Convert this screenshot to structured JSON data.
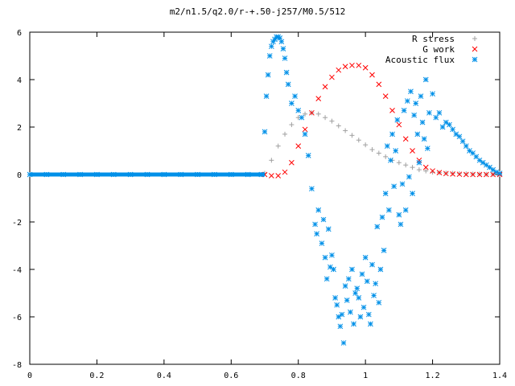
{
  "chart_data": {
    "type": "scatter",
    "title": "m2/n1.5/q2.0/r-+.50-j257/M0.5/512",
    "xlabel": "",
    "ylabel": "",
    "xlim": [
      0,
      1.4
    ],
    "ylim": [
      -8,
      6
    ],
    "xticks": [
      "0",
      "0.2",
      "0.4",
      "0.6",
      "0.8",
      "1",
      "1.2",
      "1.4"
    ],
    "yticks": [
      "6",
      "4",
      "2",
      "0",
      "-2",
      "-4",
      "-6",
      "-8"
    ],
    "grid": false,
    "legend_position": "top-right",
    "series": [
      {
        "name": "R stress",
        "marker": "plus",
        "color": "#a0a0a0",
        "x": [
          0.7,
          0.72,
          0.74,
          0.76,
          0.78,
          0.8,
          0.82,
          0.84,
          0.86,
          0.88,
          0.9,
          0.92,
          0.94,
          0.96,
          0.98,
          1.0,
          1.02,
          1.04,
          1.06,
          1.08,
          1.1,
          1.12,
          1.14,
          1.16,
          1.18,
          1.2,
          1.22,
          1.24,
          1.26,
          1.28,
          1.3,
          1.32,
          1.34,
          1.36,
          1.38,
          1.4
        ],
        "y": [
          0.05,
          0.6,
          1.2,
          1.7,
          2.1,
          2.4,
          2.55,
          2.6,
          2.55,
          2.4,
          2.25,
          2.05,
          1.85,
          1.65,
          1.45,
          1.25,
          1.05,
          0.9,
          0.75,
          0.6,
          0.5,
          0.4,
          0.3,
          0.2,
          0.15,
          0.1,
          0.08,
          0.06,
          0.05,
          0.04,
          0.03,
          0.02,
          0.02,
          0.01,
          0.01,
          0.01
        ]
      },
      {
        "name": "G work",
        "marker": "cross",
        "color": "#ff0000",
        "x": [
          0.7,
          0.72,
          0.74,
          0.76,
          0.78,
          0.8,
          0.82,
          0.84,
          0.86,
          0.88,
          0.9,
          0.92,
          0.94,
          0.96,
          0.98,
          1.0,
          1.02,
          1.04,
          1.06,
          1.08,
          1.1,
          1.12,
          1.14,
          1.16,
          1.18,
          1.2,
          1.22,
          1.24,
          1.26,
          1.28,
          1.3,
          1.32,
          1.34,
          1.36,
          1.38,
          1.4
        ],
        "y": [
          0.0,
          -0.05,
          -0.05,
          0.1,
          0.5,
          1.2,
          1.9,
          2.6,
          3.2,
          3.7,
          4.1,
          4.4,
          4.55,
          4.6,
          4.6,
          4.5,
          4.2,
          3.8,
          3.3,
          2.7,
          2.1,
          1.5,
          1.0,
          0.6,
          0.3,
          0.15,
          0.08,
          0.04,
          0.02,
          0.01,
          0.0,
          0.0,
          0.0,
          0.0,
          0.0,
          0.0
        ]
      },
      {
        "name": "Acoustic flux",
        "marker": "star",
        "color": "#0090e8",
        "x": [
          0.0,
          0.05,
          0.1,
          0.15,
          0.2,
          0.25,
          0.3,
          0.35,
          0.4,
          0.45,
          0.5,
          0.55,
          0.6,
          0.65,
          0.69,
          0.7,
          0.705,
          0.71,
          0.715,
          0.72,
          0.725,
          0.73,
          0.735,
          0.74,
          0.745,
          0.75,
          0.755,
          0.76,
          0.765,
          0.77,
          0.78,
          0.79,
          0.8,
          0.81,
          0.82,
          0.83,
          0.84,
          0.85,
          0.855,
          0.86,
          0.87,
          0.875,
          0.88,
          0.885,
          0.89,
          0.895,
          0.9,
          0.905,
          0.91,
          0.915,
          0.92,
          0.925,
          0.93,
          0.935,
          0.94,
          0.945,
          0.95,
          0.955,
          0.96,
          0.965,
          0.97,
          0.975,
          0.98,
          0.985,
          0.99,
          0.995,
          1.0,
          1.005,
          1.01,
          1.015,
          1.02,
          1.025,
          1.03,
          1.035,
          1.04,
          1.045,
          1.05,
          1.055,
          1.06,
          1.065,
          1.07,
          1.075,
          1.08,
          1.085,
          1.09,
          1.095,
          1.1,
          1.105,
          1.11,
          1.115,
          1.12,
          1.125,
          1.13,
          1.135,
          1.14,
          1.145,
          1.15,
          1.155,
          1.16,
          1.165,
          1.17,
          1.175,
          1.18,
          1.185,
          1.19,
          1.2,
          1.21,
          1.22,
          1.23,
          1.24,
          1.25,
          1.26,
          1.27,
          1.28,
          1.29,
          1.3,
          1.31,
          1.32,
          1.33,
          1.34,
          1.35,
          1.36,
          1.37,
          1.38,
          1.39,
          1.4
        ],
        "y": [
          0,
          0,
          0,
          0,
          0,
          0,
          0,
          0,
          0,
          0,
          0,
          0,
          0,
          0,
          0,
          1.8,
          3.3,
          4.2,
          5.0,
          5.4,
          5.6,
          5.7,
          5.8,
          5.8,
          5.75,
          5.6,
          5.3,
          4.9,
          4.3,
          3.8,
          3.0,
          3.3,
          2.7,
          2.4,
          1.7,
          0.8,
          -0.6,
          -2.1,
          -2.5,
          -1.5,
          -2.9,
          -1.9,
          -3.5,
          -4.4,
          -2.3,
          -3.9,
          -3.4,
          -4.0,
          -5.2,
          -5.5,
          -6.0,
          -6.4,
          -5.9,
          -7.1,
          -4.7,
          -5.3,
          -4.4,
          -5.8,
          -4.0,
          -6.3,
          -5.0,
          -4.8,
          -5.2,
          -6.0,
          -4.2,
          -5.6,
          -3.5,
          -4.5,
          -5.9,
          -6.3,
          -3.8,
          -5.1,
          -4.6,
          -2.2,
          -5.4,
          -4.0,
          -1.8,
          -3.2,
          -0.8,
          1.2,
          -1.5,
          0.6,
          1.7,
          -0.5,
          1.0,
          2.3,
          -1.7,
          -2.1,
          -0.4,
          2.7,
          -1.5,
          3.1,
          -0.1,
          3.5,
          -0.8,
          2.5,
          3.0,
          1.7,
          0.5,
          3.3,
          2.2,
          1.5,
          4.0,
          1.1,
          2.6,
          3.4,
          2.4,
          2.6,
          2.0,
          2.2,
          2.1,
          1.9,
          1.7,
          1.6,
          1.4,
          1.2,
          1.0,
          0.9,
          0.75,
          0.6,
          0.5,
          0.4,
          0.3,
          0.2,
          0.1,
          0.05
        ]
      }
    ]
  }
}
